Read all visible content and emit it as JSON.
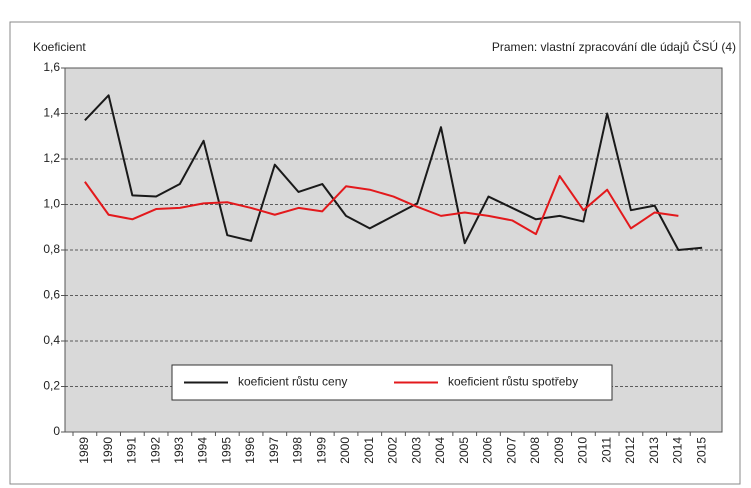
{
  "chart_data": {
    "type": "line",
    "y_label": "Koeficient",
    "source": "Pramen: vlastní zpracování dle údajů ČSÚ (4)",
    "categories": [
      "1989",
      "1990",
      "1991",
      "1992",
      "1993",
      "1994",
      "1995",
      "1996",
      "1997",
      "1998",
      "1999",
      "2000",
      "2001",
      "2002",
      "2003",
      "2004",
      "2005",
      "2006",
      "2007",
      "2008",
      "2009",
      "2010",
      "2011",
      "2012",
      "2013",
      "2014",
      "2015"
    ],
    "series": [
      {
        "name": "koeficient růstu ceny",
        "color": "#1a1a1a",
        "values": [
          1.37,
          1.48,
          1.04,
          1.035,
          1.09,
          1.28,
          0.865,
          0.84,
          1.175,
          1.055,
          1.09,
          0.95,
          0.895,
          0.95,
          1.005,
          1.34,
          0.83,
          1.035,
          0.985,
          0.935,
          0.95,
          0.925,
          1.4,
          0.975,
          0.995,
          0.8,
          0.81
        ]
      },
      {
        "name": "koeficient růstu spotřeby",
        "color": "#e3191c",
        "values": [
          1.1,
          0.955,
          0.935,
          0.98,
          0.985,
          1.005,
          1.01,
          0.985,
          0.955,
          0.985,
          0.97,
          1.08,
          1.065,
          1.035,
          0.99,
          0.95,
          0.965,
          0.95,
          0.93,
          0.87,
          1.125,
          0.975,
          1.065,
          0.895,
          0.965,
          0.95,
          null
        ]
      }
    ],
    "ylim": [
      0,
      1.6
    ],
    "yticks": [
      0,
      {
        "value": 0.2,
        "label": "0,2"
      },
      {
        "value": 0.4,
        "label": "0,4"
      },
      {
        "value": 0.6,
        "label": "0,6"
      },
      {
        "value": 0.8,
        "label": "0,8"
      },
      {
        "value": 1.0,
        "label": "1,0"
      },
      {
        "value": 1.2,
        "label": "1,2"
      },
      {
        "value": 1.4,
        "label": "1,4"
      },
      {
        "value": 1.6,
        "label": "1,6"
      }
    ],
    "grid": true,
    "legend": "bottom"
  }
}
